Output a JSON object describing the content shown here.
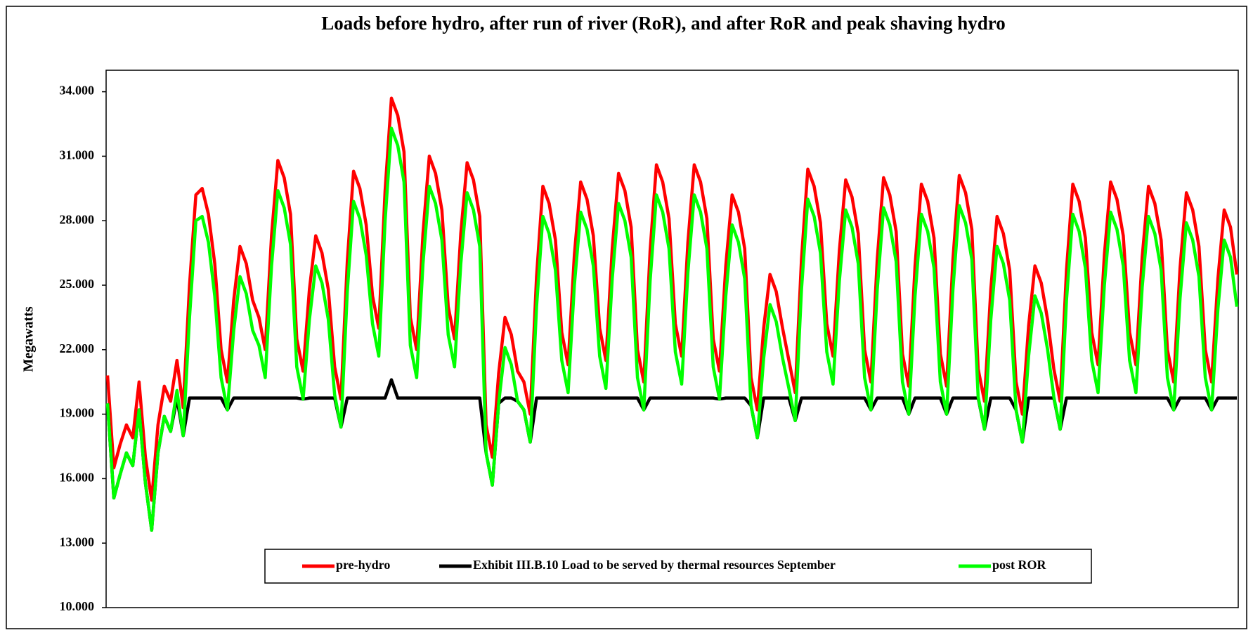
{
  "chart_data": {
    "type": "line",
    "title": "Loads before hydro, after run of river (RoR), and after RoR and peak shaving hydro",
    "ylabel": "Megawatts",
    "ylim": [
      10,
      35
    ],
    "yticks": [
      {
        "value": 10,
        "label": "10.000"
      },
      {
        "value": 13,
        "label": "13.000"
      },
      {
        "value": 16,
        "label": "16.000"
      },
      {
        "value": 19,
        "label": "19.000"
      },
      {
        "value": 22,
        "label": "22.000"
      },
      {
        "value": 25,
        "label": "25.000"
      },
      {
        "value": 28,
        "label": "28.000"
      },
      {
        "value": 31,
        "label": "31.000"
      },
      {
        "value": 34,
        "label": "34.000"
      }
    ],
    "grid": false,
    "legend": "lower center",
    "series": [
      {
        "name": "pre-hydro",
        "color": "#ff0000",
        "values": [
          20.8,
          16.5,
          17.6,
          18.5,
          17.9,
          20.5,
          17.0,
          15.0,
          18.5,
          20.3,
          19.6,
          21.5,
          19.3,
          25.0,
          29.2,
          29.5,
          28.3,
          26.0,
          22.0,
          20.5,
          24.3,
          26.8,
          26.0,
          24.3,
          23.5,
          22.0,
          27.3,
          30.8,
          30.0,
          28.3,
          22.5,
          21.0,
          24.8,
          27.3,
          26.5,
          24.8,
          21.2,
          19.7,
          26.1,
          30.3,
          29.5,
          27.8,
          24.5,
          23.0,
          29.4,
          33.7,
          32.9,
          31.2,
          23.5,
          22.0,
          27.4,
          31.0,
          30.2,
          28.5,
          24.0,
          22.5,
          27.4,
          30.7,
          29.9,
          28.2,
          18.5,
          17.0,
          20.9,
          23.5,
          22.7,
          21.0,
          20.5,
          19.0,
          25.4,
          29.6,
          28.8,
          27.1,
          22.8,
          21.3,
          26.4,
          29.8,
          29.0,
          27.3,
          23.0,
          21.5,
          26.7,
          30.2,
          29.4,
          27.7,
          22.0,
          20.5,
          26.6,
          30.6,
          29.8,
          28.1,
          23.2,
          21.7,
          27.0,
          30.6,
          29.8,
          28.1,
          22.5,
          21.0,
          25.9,
          29.2,
          28.4,
          26.7,
          20.7,
          19.2,
          23.0,
          25.5,
          24.7,
          23.0,
          21.5,
          20.0,
          26.2,
          30.4,
          29.6,
          27.9,
          23.2,
          21.7,
          26.6,
          29.9,
          29.1,
          27.4,
          22.0,
          20.5,
          26.2,
          30.0,
          29.2,
          27.5,
          21.8,
          20.3,
          25.9,
          29.7,
          28.9,
          27.2,
          21.8,
          20.3,
          26.2,
          30.1,
          29.3,
          27.6,
          21.1,
          19.6,
          24.8,
          28.2,
          27.4,
          25.7,
          20.5,
          19.0,
          23.1,
          25.9,
          25.1,
          23.4,
          21.1,
          19.6,
          25.7,
          29.7,
          28.9,
          27.2,
          22.8,
          21.3,
          26.4,
          29.8,
          29.0,
          27.3,
          22.8,
          21.3,
          26.3,
          29.6,
          28.8,
          27.1,
          22.0,
          20.5,
          25.8,
          29.3,
          28.5,
          26.8,
          22.0,
          20.5,
          25.3,
          28.5,
          27.7,
          25.5
        ]
      },
      {
        "name": "Exhibit III.B.10 Load to be served by thermal resources September",
        "color": "#000000",
        "values": [
          19.5,
          15.1,
          16.2,
          17.2,
          16.6,
          19.2,
          15.8,
          13.6,
          17.2,
          18.9,
          18.2,
          19.75,
          18.0,
          19.75,
          19.75,
          19.75,
          19.75,
          19.75,
          19.75,
          19.2,
          19.75,
          19.75,
          19.75,
          19.75,
          19.75,
          19.75,
          19.75,
          19.75,
          19.75,
          19.75,
          19.75,
          19.7,
          19.75,
          19.75,
          19.75,
          19.75,
          19.75,
          18.4,
          19.75,
          19.75,
          19.75,
          19.75,
          19.75,
          19.75,
          19.75,
          20.6,
          19.75,
          19.75,
          19.75,
          19.75,
          19.75,
          19.75,
          19.75,
          19.75,
          19.75,
          19.75,
          19.75,
          19.75,
          19.75,
          19.75,
          17.2,
          15.7,
          19.5,
          19.75,
          19.75,
          19.6,
          19.2,
          17.7,
          19.75,
          19.75,
          19.75,
          19.75,
          19.75,
          19.75,
          19.75,
          19.75,
          19.75,
          19.75,
          19.75,
          19.75,
          19.75,
          19.75,
          19.75,
          19.75,
          19.75,
          19.2,
          19.75,
          19.75,
          19.75,
          19.75,
          19.75,
          19.75,
          19.75,
          19.75,
          19.75,
          19.75,
          19.75,
          19.7,
          19.75,
          19.75,
          19.75,
          19.75,
          19.4,
          17.9,
          19.75,
          19.75,
          19.75,
          19.75,
          19.75,
          18.7,
          19.75,
          19.75,
          19.75,
          19.75,
          19.75,
          19.75,
          19.75,
          19.75,
          19.75,
          19.75,
          19.75,
          19.2,
          19.75,
          19.75,
          19.75,
          19.75,
          19.75,
          19.0,
          19.75,
          19.75,
          19.75,
          19.75,
          19.75,
          19.0,
          19.75,
          19.75,
          19.75,
          19.75,
          19.75,
          18.3,
          19.75,
          19.75,
          19.75,
          19.75,
          19.2,
          17.7,
          19.75,
          19.75,
          19.75,
          19.75,
          19.75,
          18.3,
          19.75,
          19.75,
          19.75,
          19.75,
          19.75,
          19.75,
          19.75,
          19.75,
          19.75,
          19.75,
          19.75,
          19.75,
          19.75,
          19.75,
          19.75,
          19.75,
          19.75,
          19.2,
          19.75,
          19.75,
          19.75,
          19.75,
          19.75,
          19.2,
          19.75,
          19.75,
          19.75,
          19.75
        ]
      },
      {
        "name": "post ROR",
        "color": "#00ff00",
        "values": [
          19.5,
          15.1,
          16.2,
          17.2,
          16.6,
          19.2,
          15.8,
          13.6,
          17.2,
          18.9,
          18.2,
          20.1,
          18.0,
          23.5,
          28.0,
          28.2,
          27.0,
          24.5,
          20.7,
          19.2,
          22.9,
          25.4,
          24.6,
          22.9,
          22.2,
          20.7,
          25.9,
          29.4,
          28.6,
          26.9,
          21.2,
          19.7,
          23.4,
          25.9,
          25.1,
          23.4,
          19.9,
          18.4,
          24.7,
          28.9,
          28.1,
          26.4,
          23.2,
          21.7,
          28.0,
          32.3,
          31.5,
          29.8,
          22.2,
          20.7,
          26.0,
          29.6,
          28.8,
          27.1,
          22.7,
          21.2,
          26.0,
          29.3,
          28.5,
          26.8,
          17.2,
          15.7,
          19.5,
          22.1,
          21.3,
          19.6,
          19.2,
          17.7,
          24.0,
          28.2,
          27.4,
          25.7,
          21.5,
          20.0,
          25.0,
          28.4,
          27.6,
          25.9,
          21.7,
          20.2,
          25.3,
          28.8,
          28.0,
          26.3,
          20.7,
          19.2,
          25.2,
          29.2,
          28.4,
          26.7,
          21.9,
          20.4,
          25.6,
          29.2,
          28.4,
          26.7,
          21.2,
          19.7,
          24.5,
          27.8,
          27.0,
          25.3,
          19.4,
          17.9,
          21.6,
          24.1,
          23.3,
          21.6,
          20.2,
          18.7,
          24.8,
          29.0,
          28.2,
          26.5,
          21.9,
          20.4,
          25.2,
          28.5,
          27.7,
          26.0,
          20.7,
          19.2,
          24.8,
          28.6,
          27.8,
          26.1,
          20.5,
          19.0,
          24.5,
          28.3,
          27.5,
          25.8,
          20.5,
          19.0,
          24.8,
          28.7,
          27.9,
          26.2,
          19.8,
          18.3,
          23.4,
          26.8,
          26.0,
          24.3,
          19.2,
          17.7,
          21.7,
          24.5,
          23.7,
          22.0,
          19.8,
          18.3,
          24.3,
          28.3,
          27.5,
          25.8,
          21.5,
          20.0,
          25.0,
          28.4,
          27.6,
          25.9,
          21.5,
          20.0,
          24.9,
          28.2,
          27.4,
          25.7,
          20.7,
          19.2,
          24.4,
          27.9,
          27.1,
          25.4,
          20.7,
          19.2,
          23.9,
          27.1,
          26.3,
          24.0
        ]
      }
    ]
  }
}
